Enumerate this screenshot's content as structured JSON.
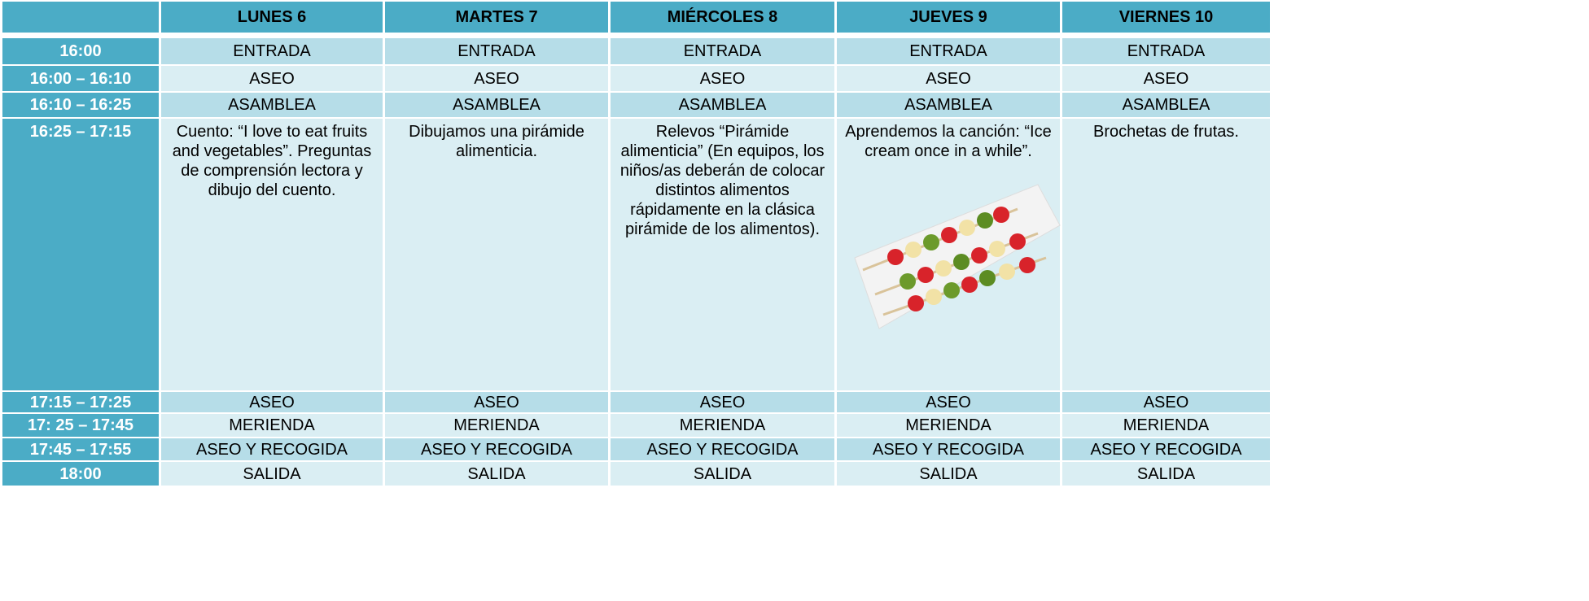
{
  "header": {
    "corner": "",
    "days": [
      "LUNES 6",
      "MARTES 7",
      "MIÉRCOLES 8",
      "JUEVES 9",
      "VIERNES 10"
    ]
  },
  "rows": [
    {
      "time": "16:00",
      "cells": [
        "ENTRADA",
        "ENTRADA",
        "ENTRADA",
        "ENTRADA",
        "ENTRADA"
      ]
    },
    {
      "time": "16:00 – 16:10",
      "cells": [
        "ASEO",
        "ASEO",
        "ASEO",
        "ASEO",
        "ASEO"
      ]
    },
    {
      "time": "16:10 – 16:25",
      "cells": [
        "ASAMBLEA",
        "ASAMBLEA",
        "ASAMBLEA",
        "ASAMBLEA",
        "ASAMBLEA"
      ]
    },
    {
      "time": "16:25 – 17:15",
      "cells": [
        "Cuento: “I love to eat fruits and vegetables”. Preguntas de comprensión lectora y dibujo del cuento.",
        "Dibujamos una pirámide alimenticia.",
        "Relevos “Pirámide alimenticia” (En equipos, los niños/as deberán de colocar distintos alimentos rápidamente en la clásica pirámide de los alimentos).",
        "Aprendemos la canción: “Ice cream once in a while”.",
        "Brochetas de frutas."
      ]
    },
    {
      "time": "17:15 – 17:25",
      "cells": [
        "ASEO",
        "ASEO",
        "ASEO",
        "ASEO",
        "ASEO"
      ]
    },
    {
      "time": "17: 25 – 17:45",
      "cells": [
        "MERIENDA",
        "MERIENDA",
        "MERIENDA",
        "MERIENDA",
        "MERIENDA"
      ]
    },
    {
      "time": "17:45 – 17:55",
      "cells": [
        "ASEO Y RECOGIDA",
        "ASEO Y RECOGIDA",
        "ASEO Y RECOGIDA",
        "ASEO Y RECOGIDA",
        "ASEO Y RECOGIDA"
      ]
    },
    {
      "time": "18:00",
      "cells": [
        "SALIDA",
        "SALIDA",
        "SALIDA",
        "SALIDA",
        "SALIDA"
      ]
    }
  ]
}
